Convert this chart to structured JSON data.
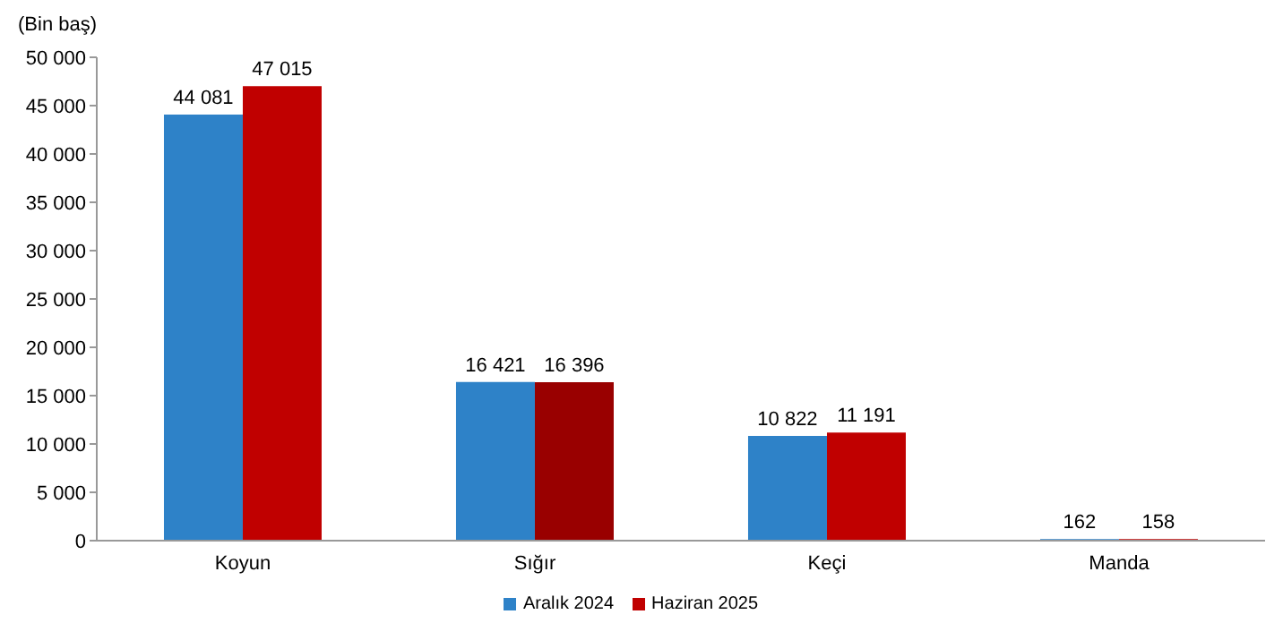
{
  "chart_data": {
    "type": "bar",
    "ylabel": "(Bin baş)",
    "categories": [
      "Koyun",
      "Sığır",
      "Keçi",
      "Manda"
    ],
    "series": [
      {
        "name": "Aralık 2024",
        "color": "#2e82c8",
        "values": [
          44081,
          16421,
          10822,
          162
        ]
      },
      {
        "name": "Haziran 2025",
        "color": "#c00000",
        "colors": [
          "#c00000",
          "#990000",
          "#c00000",
          "#c00000"
        ],
        "values": [
          47015,
          16396,
          11191,
          158
        ]
      }
    ],
    "ylim": [
      0,
      50000
    ],
    "yticks": [
      {
        "value": 0,
        "label": "0"
      },
      {
        "value": 5000,
        "label": "5 000"
      },
      {
        "value": 10000,
        "label": "10 000"
      },
      {
        "value": 15000,
        "label": "15 000"
      },
      {
        "value": 20000,
        "label": "20 000"
      },
      {
        "value": 25000,
        "label": "25 000"
      },
      {
        "value": 30000,
        "label": "30 000"
      },
      {
        "value": 35000,
        "label": "35 000"
      },
      {
        "value": 40000,
        "label": "40 000"
      },
      {
        "value": 45000,
        "label": "45 000"
      },
      {
        "value": 50000,
        "label": "50 000"
      }
    ],
    "data_labels": true,
    "grid": false,
    "legend": "bottom"
  }
}
